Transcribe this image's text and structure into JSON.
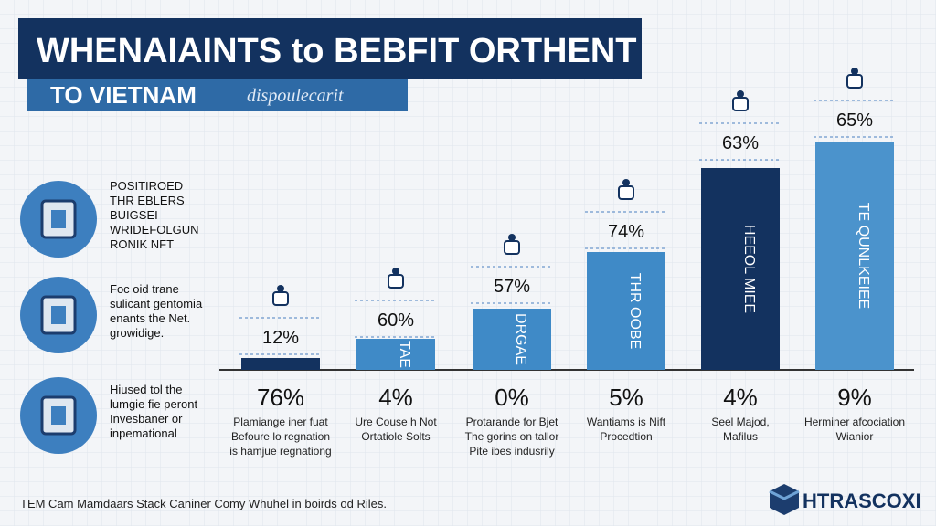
{
  "header": {
    "title": "WHENAIAINTS to BEBFIT ORTHENT",
    "subtitle": "TO VIETNAM",
    "tagline": "dispoulecarit"
  },
  "side_items": [
    {
      "lines": [
        "POSITIROED",
        "THR EBLERS",
        "BUIGSEI",
        "WRIDEFOLGUN",
        "RONIK NFT"
      ]
    },
    {
      "lines": [
        "Foc oid trane",
        "sulicant gentomia",
        "enants the Net.",
        "growidige."
      ]
    },
    {
      "lines": [
        "Hiused tol the",
        "lumgie fie peront",
        "Invesbaner or",
        "inpemational"
      ]
    }
  ],
  "columns": [
    {
      "top_label": "12%",
      "value": "76%",
      "caption": [
        "Plamiange iner fuat",
        "Befoure lo regnation",
        "is hamjue regnationg"
      ]
    },
    {
      "top_label": "60%",
      "bar_text": "TAE",
      "value": "4%",
      "caption": [
        "Ure Couse h Not",
        "Ortatiole Solts"
      ]
    },
    {
      "top_label": "57%",
      "bar_text": "DRGAE",
      "value": "0%",
      "caption": [
        "Protarande for Bjet",
        "The gorins on tallor",
        "Pite ibes indusrily"
      ]
    },
    {
      "top_label": "74%",
      "bar_text": "THR OOBE",
      "value": "5%",
      "caption": [
        "Wantiams is Nift",
        "Procedtion"
      ]
    },
    {
      "top_label": "63%",
      "bar_text": "HEEOL MIEE",
      "value": "4%",
      "caption": [
        "Seel Majod,",
        "Mafilus"
      ]
    },
    {
      "top_label": "65%",
      "bar_text": "TE QUNLKEIEE",
      "value": "9%",
      "caption": [
        "Herminer afcociation",
        "Wianior"
      ]
    }
  ],
  "footer": {
    "note": "TEM Cam Mamdaars Stack Caniner Comy Whuhel in boirds od Riles.",
    "logo": "HTRASCOXI"
  }
}
